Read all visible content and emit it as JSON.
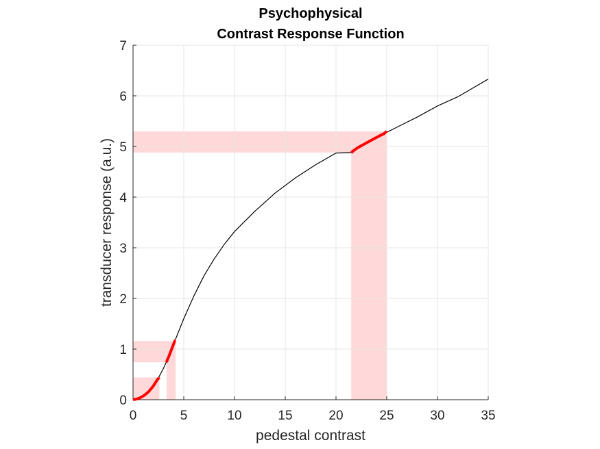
{
  "chart_data": {
    "type": "line",
    "title": [
      "Psychophysical",
      "Contrast Response Function"
    ],
    "xlabel": "pedestal contrast",
    "ylabel": "transducer response (a.u.)",
    "xlim": [
      0,
      35
    ],
    "ylim": [
      0,
      7
    ],
    "xticks": [
      0,
      5,
      10,
      15,
      20,
      25,
      30,
      35
    ],
    "yticks": [
      0,
      1,
      2,
      3,
      4,
      5,
      6,
      7
    ],
    "grid": true,
    "colors": {
      "curve": "#000000",
      "highlight": "#ff0000",
      "band": "#ffd9d9",
      "grid": "#e6e6e6",
      "axis": "#262626"
    },
    "series": [
      {
        "x": [
          0,
          0.5,
          1,
          1.5,
          2,
          2.5,
          3,
          3.5,
          4,
          4.5,
          5,
          6,
          7,
          8,
          9,
          10,
          12,
          14,
          16,
          18,
          20,
          21.5,
          22,
          24,
          25,
          26,
          28,
          30,
          32,
          35
        ],
        "y": [
          0,
          0.02,
          0.07,
          0.15,
          0.27,
          0.43,
          0.62,
          0.84,
          1.1,
          1.35,
          1.6,
          2.05,
          2.45,
          2.78,
          3.07,
          3.32,
          3.72,
          4.08,
          4.38,
          4.64,
          4.87,
          4.88,
          4.96,
          5.18,
          5.28,
          5.38,
          5.58,
          5.8,
          5.98,
          6.33
        ]
      }
    ],
    "highlights": [
      {
        "x": [
          0,
          2.6
        ],
        "y": [
          0,
          0.44
        ]
      },
      {
        "x": [
          3.3,
          4.2
        ],
        "y": [
          0.74,
          1.16
        ]
      },
      {
        "x": [
          21.5,
          25
        ],
        "y": [
          4.88,
          5.3
        ]
      }
    ]
  }
}
